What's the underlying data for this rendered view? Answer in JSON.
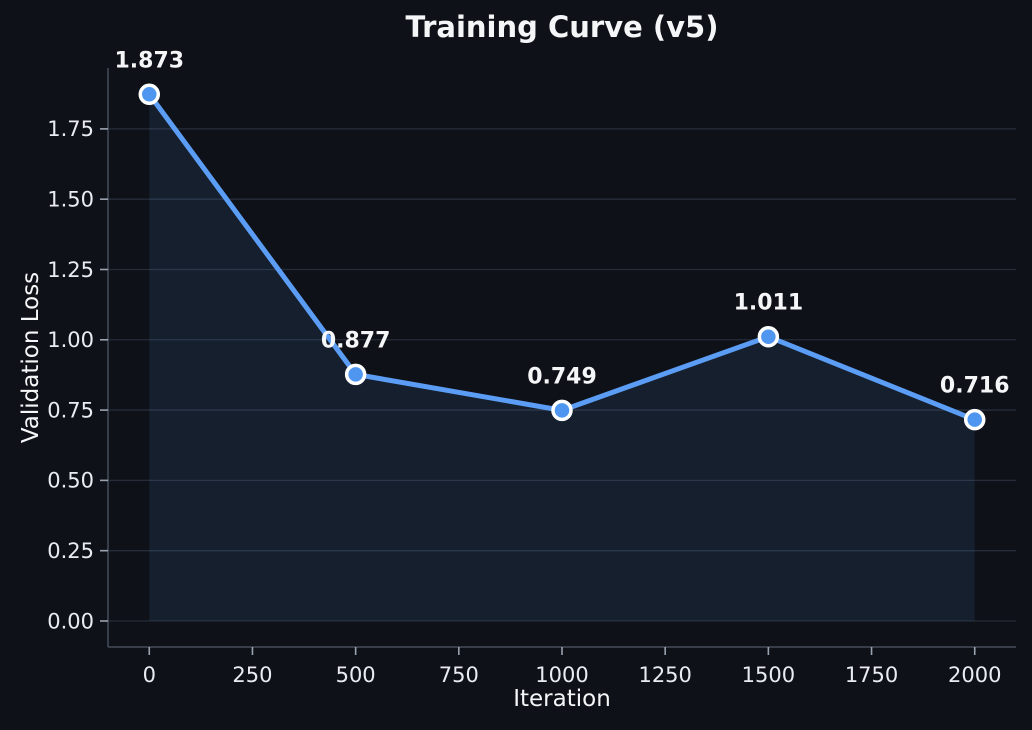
{
  "chart_data": {
    "type": "line",
    "title": "Training Curve (v5)",
    "xlabel": "Iteration",
    "ylabel": "Validation Loss",
    "x": [
      0,
      500,
      1000,
      1500,
      2000
    ],
    "y": [
      1.873,
      0.877,
      0.749,
      1.011,
      0.716
    ],
    "point_labels": [
      "1.873",
      "0.877",
      "0.749",
      "1.011",
      "0.716"
    ],
    "x_ticks": [
      0,
      250,
      500,
      750,
      1000,
      1250,
      1500,
      1750,
      2000
    ],
    "x_tick_labels": [
      "0",
      "250",
      "500",
      "750",
      "1000",
      "1250",
      "1500",
      "1750",
      "2000"
    ],
    "y_ticks": [
      0.0,
      0.25,
      0.5,
      0.75,
      1.0,
      1.25,
      1.5,
      1.75
    ],
    "y_tick_labels": [
      "0.00",
      "0.25",
      "0.50",
      "0.75",
      "1.00",
      "1.25",
      "1.50",
      "1.75"
    ],
    "xlim": [
      -100,
      2100
    ],
    "ylim": [
      -0.0925,
      1.9665
    ],
    "grid": "horizontal",
    "legend": "none",
    "area_fill_to": 0,
    "colors": {
      "background": "#0e1117",
      "line": "#5b9df5",
      "marker_fill": "#4e96f0",
      "marker_edge": "#ffffff",
      "area_fill": "rgba(91,157,245,0.10)",
      "grid": "#262d39",
      "spine": "#454c5a",
      "tick_mark": "#9aa3b0",
      "tick_text": "#e9ecf1",
      "text": "#f5f6f8"
    }
  }
}
